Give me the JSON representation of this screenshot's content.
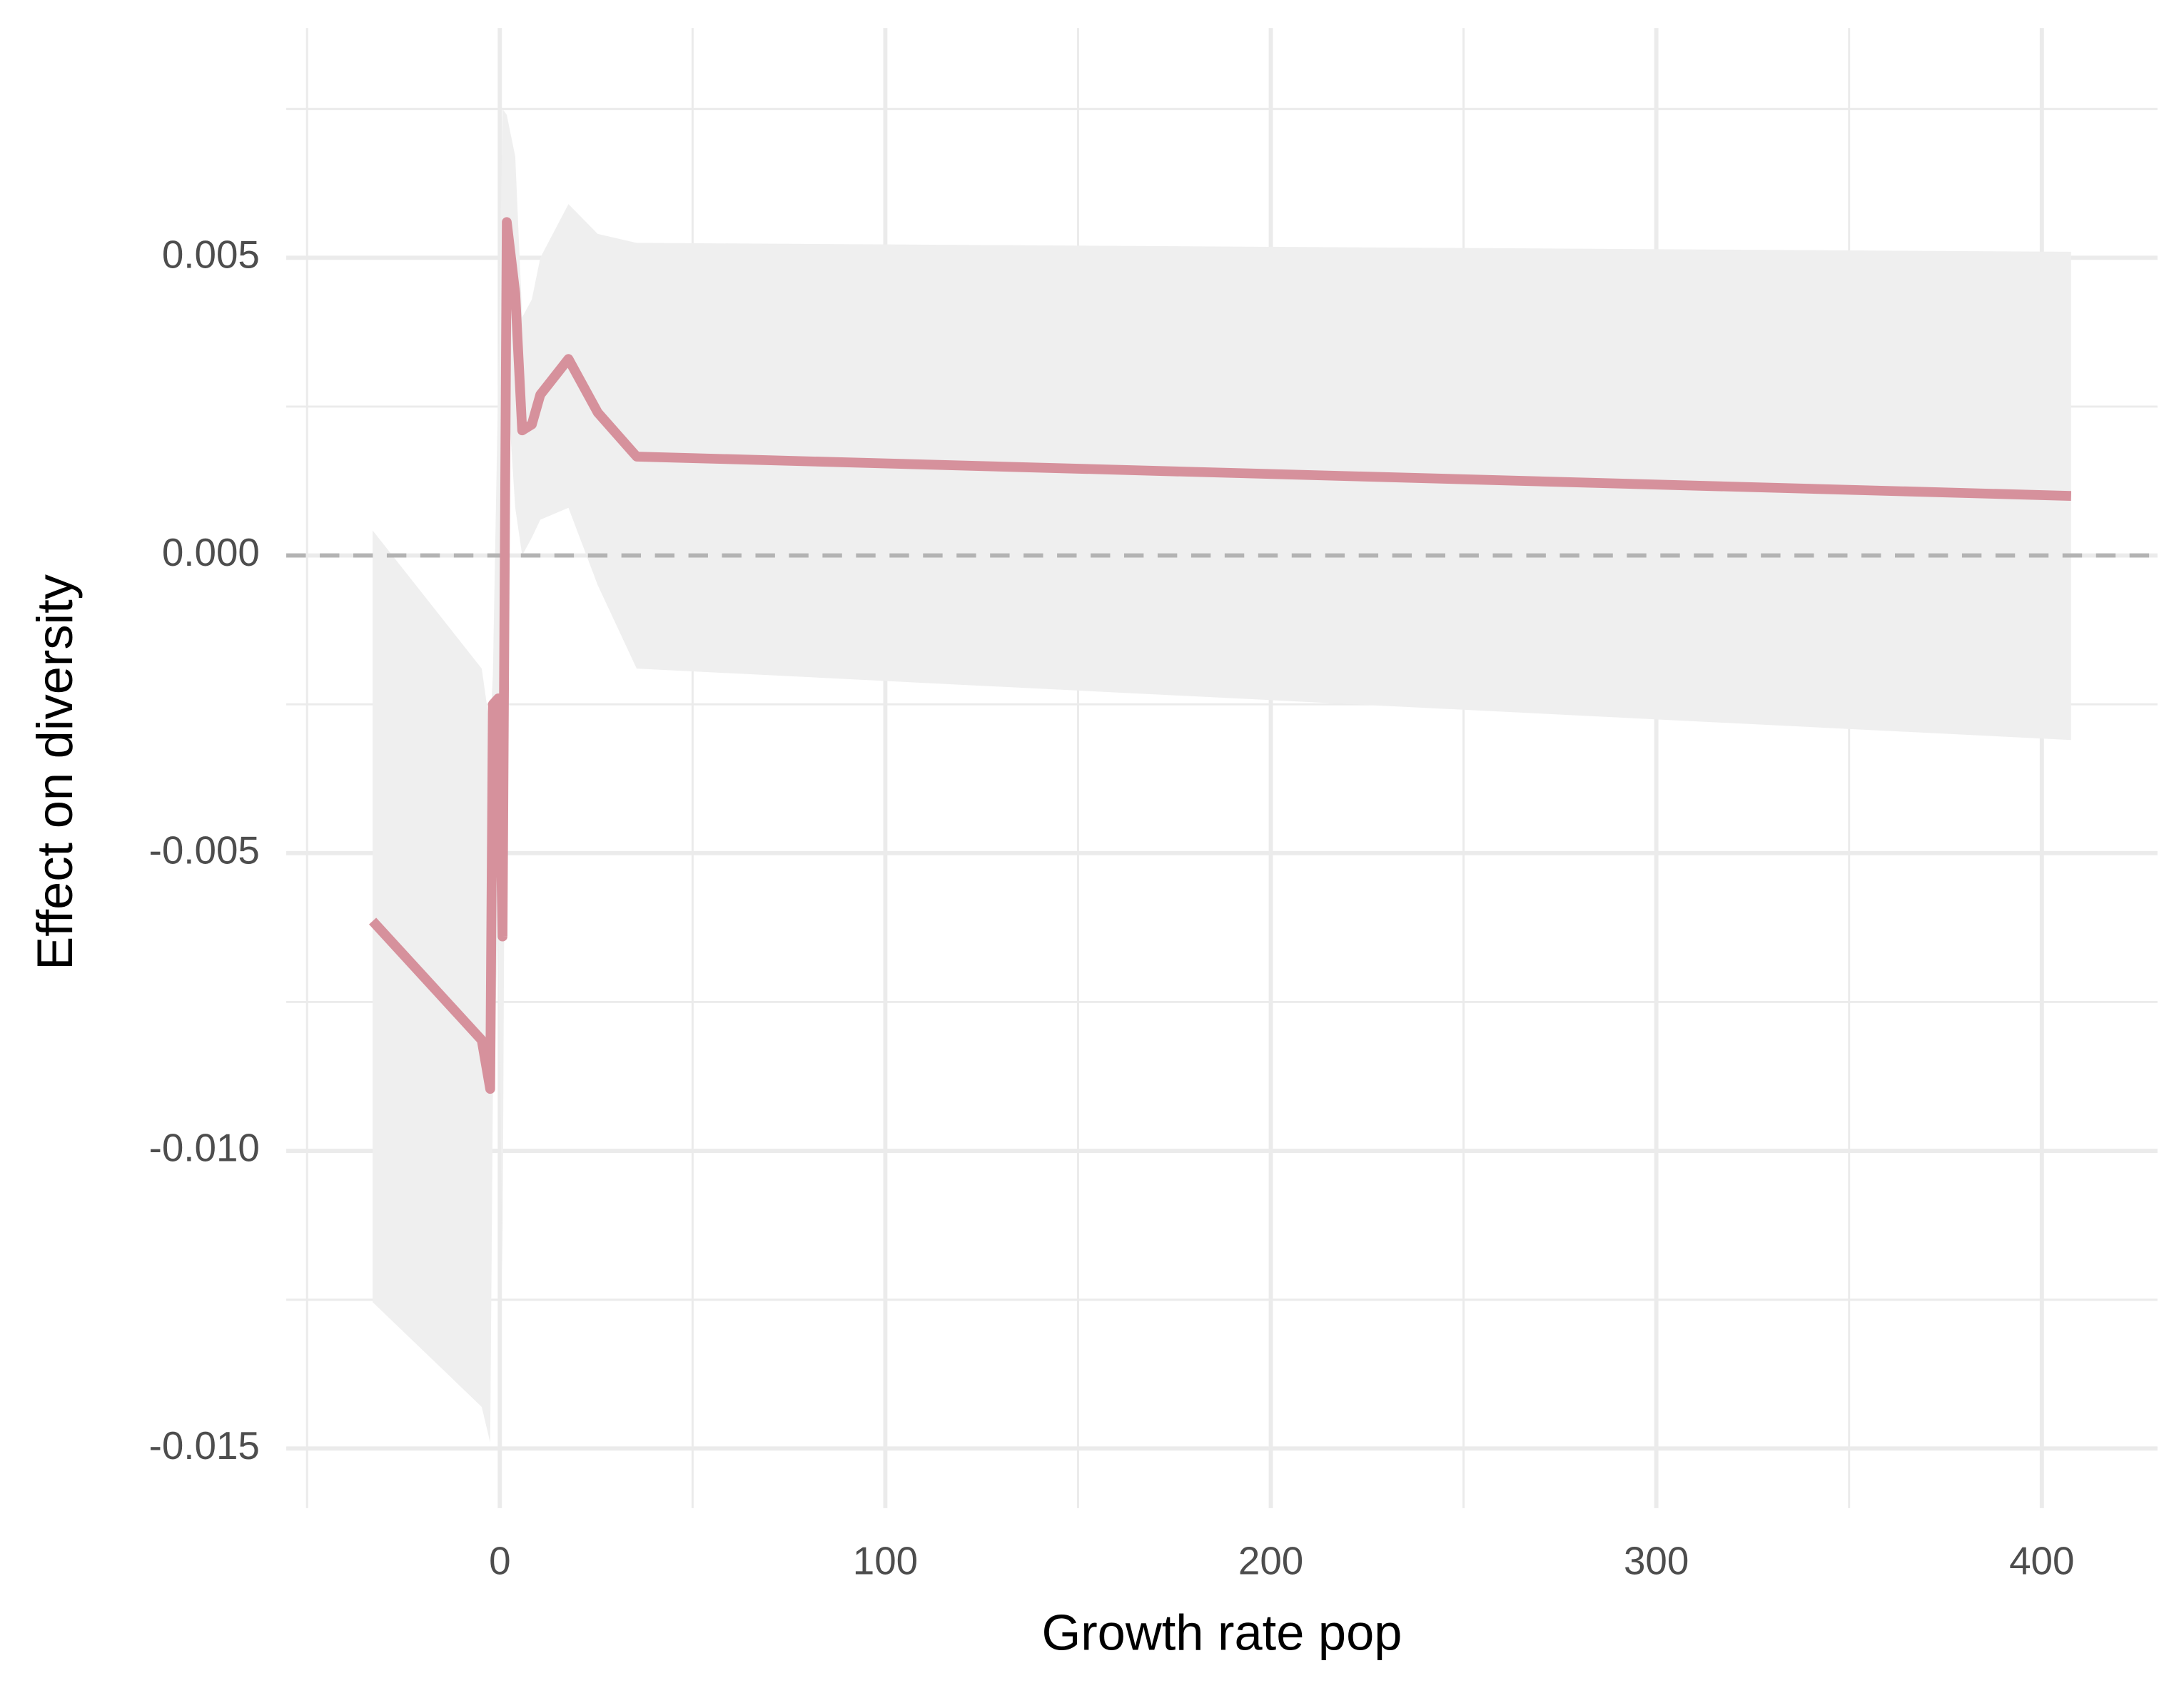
{
  "chart_data": {
    "type": "line",
    "x_label": "Growth rate pop",
    "y_label": "Effect on diversity",
    "x": [
      -33,
      -4.7,
      -2.5,
      -1.8,
      -0.4,
      0.7,
      1.8,
      4,
      5.8,
      8.3,
      10.5,
      17.8,
      25.4,
      35.5,
      407.6
    ],
    "series": [
      {
        "color": "#d6919c",
        "values": [
          -0.00614,
          -0.00814,
          -0.00896,
          -0.0025,
          -0.0024,
          -0.0064,
          0.0056,
          0.0044,
          0.0021,
          0.0022,
          0.0027,
          0.0033,
          0.0024,
          0.00166,
          0.001
        ],
        "upper": [
          0.00042,
          -0.0019,
          -0.0029,
          -0.002,
          0.003,
          0.0075,
          0.0074,
          0.0067,
          0.004,
          0.0043,
          0.005,
          0.0059,
          0.0054,
          0.00525,
          0.0051
        ],
        "lower": [
          -0.01254,
          -0.0143,
          -0.0149,
          -0.009,
          -0.0062,
          -0.012,
          0.003,
          0.0008,
          0,
          0.0003,
          0.0006,
          0.0008,
          -0.0005,
          -0.0019,
          -0.0031
        ],
        "band_color": "#efefef"
      }
    ],
    "hline": 0,
    "xlim": [
      -55.4,
      430
    ],
    "ylim": [
      -0.016,
      0.00886
    ],
    "xticks": [
      0,
      100,
      200,
      300,
      400
    ],
    "xminor": [
      -50,
      50,
      150,
      250,
      350
    ],
    "yticks": [
      0.005,
      {
        "value": 0,
        "label": "0.000"
      },
      -0.005,
      {
        "value": -0.01,
        "label": "-0.010"
      },
      -0.015
    ],
    "yminor": [
      0.0075,
      0.0025,
      -0.0025,
      -0.0075,
      -0.0125
    ],
    "grid": true
  }
}
